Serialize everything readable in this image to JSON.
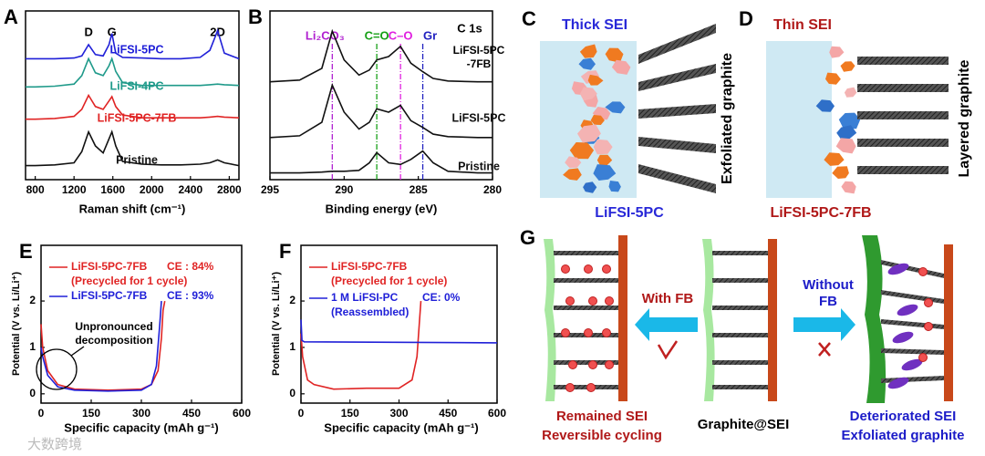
{
  "chart_data": [
    {
      "type": "line",
      "panel": "A",
      "xlabel": "Raman shift (cm⁻¹)",
      "x": [
        700,
        800,
        1000,
        1200,
        1280,
        1350,
        1420,
        1500,
        1560,
        1590,
        1630,
        1700,
        1900,
        2100,
        2300,
        2500,
        2600,
        2680,
        2750,
        2900
      ],
      "xlim": [
        700,
        2900
      ],
      "xticks": [
        800,
        1200,
        1600,
        2000,
        2400,
        2800
      ],
      "ylim": [
        0,
        12
      ],
      "grid": false,
      "peak_labels": [
        {
          "label": "D",
          "x": 1350
        },
        {
          "label": "G",
          "x": 1590
        },
        {
          "label": "2D",
          "x": 2680
        }
      ],
      "series": [
        {
          "name": "LiFSI-5PC",
          "color": "#2020d8",
          "values": [
            8.6,
            8.6,
            8.6,
            8.65,
            8.8,
            9.6,
            8.9,
            8.8,
            9.6,
            10.4,
            9.0,
            8.7,
            8.65,
            8.6,
            8.6,
            8.7,
            9.2,
            10.6,
            9.0,
            8.6
          ]
        },
        {
          "name": "LiFSI-4PC",
          "color": "#1f9a8a",
          "values": [
            6.6,
            6.6,
            6.65,
            6.8,
            7.4,
            8.6,
            7.6,
            7.4,
            8.1,
            8.6,
            7.7,
            6.9,
            6.7,
            6.7,
            6.7,
            6.7,
            6.75,
            6.8,
            6.75,
            6.7
          ]
        },
        {
          "name": "LiFSI-5PC-7FB",
          "color": "#e02424",
          "values": [
            4.3,
            4.3,
            4.35,
            4.5,
            5.0,
            6.0,
            5.2,
            5.0,
            5.6,
            5.9,
            5.2,
            4.6,
            4.4,
            4.4,
            4.4,
            4.4,
            4.45,
            4.5,
            4.45,
            4.4
          ]
        },
        {
          "name": "Pristine",
          "color": "#111111",
          "values": [
            1.0,
            1.0,
            1.05,
            1.2,
            2.0,
            3.4,
            2.4,
            1.9,
            2.9,
            3.4,
            2.4,
            1.3,
            1.1,
            1.05,
            1.05,
            1.1,
            1.2,
            1.4,
            1.2,
            1.0
          ]
        }
      ]
    },
    {
      "type": "line",
      "panel": "B",
      "title": "C 1s",
      "xlabel": "Binding energy (eV)",
      "x": [
        295,
        293,
        291.5,
        290.8,
        290,
        289,
        288.3,
        287.8,
        287,
        286.2,
        285.5,
        284.7,
        284,
        283,
        281,
        280
      ],
      "xlim": [
        295,
        280
      ],
      "xticks": [
        295,
        290,
        285,
        280
      ],
      "ylim": [
        0,
        10
      ],
      "grid": false,
      "peaks": [
        {
          "label": "Li₂CO₃",
          "x": 290.8,
          "color": "#b020d0"
        },
        {
          "label": "C=O",
          "x": 287.8,
          "color": "#18a018"
        },
        {
          "label": "C–O",
          "x": 286.2,
          "color": "#e020e0"
        },
        {
          "label": "Gr",
          "x": 284.7,
          "color": "#2020c0"
        }
      ],
      "series": [
        {
          "name": "LiFSI-5PC -7FB",
          "color": "#111111",
          "values": [
            5.8,
            5.9,
            6.6,
            8.8,
            7.1,
            6.2,
            6.5,
            7.1,
            7.3,
            7.9,
            6.9,
            6.4,
            6.0,
            5.85,
            5.8,
            5.8
          ]
        },
        {
          "name": "LiFSI-5PC",
          "color": "#111111",
          "values": [
            2.5,
            2.6,
            3.4,
            5.6,
            4.0,
            3.0,
            3.4,
            4.2,
            4.0,
            4.4,
            3.5,
            3.1,
            2.7,
            2.55,
            2.5,
            2.5
          ]
        },
        {
          "name": "Pristine",
          "color": "#111111",
          "values": [
            0.4,
            0.4,
            0.45,
            0.5,
            0.5,
            0.55,
            1.0,
            1.6,
            1.0,
            0.9,
            1.2,
            1.7,
            1.0,
            0.5,
            0.4,
            0.4
          ]
        }
      ]
    },
    {
      "type": "line",
      "panel": "E",
      "xlabel": "Specific capacity (mAh g⁻¹)",
      "ylabel": "Potential (V vs. Li/Li⁺)",
      "xlim": [
        0,
        600
      ],
      "xticks": [
        0,
        150,
        300,
        450,
        600
      ],
      "ylim": [
        -0.2,
        3.2
      ],
      "yticks": [
        0,
        1,
        2
      ],
      "grid": false,
      "annotation": "Unpronounced decomposition",
      "series": [
        {
          "name": "LiFSI-5PC-7FB",
          "color": "#e02424",
          "note": "CE : 84%",
          "sub": "(Precycled for 1 cycle)",
          "x": [
            0,
            5,
            20,
            50,
            100,
            200,
            300,
            330,
            350,
            360,
            365,
            370
          ],
          "values": [
            1.5,
            1.0,
            0.5,
            0.2,
            0.1,
            0.08,
            0.1,
            0.2,
            0.5,
            1.2,
            1.8,
            2.0
          ]
        },
        {
          "name": "LiFSI-5PC-7FB",
          "color": "#2020d8",
          "note": "CE : 93%",
          "x": [
            0,
            5,
            20,
            50,
            100,
            200,
            300,
            330,
            345,
            355,
            360
          ],
          "values": [
            1.0,
            0.8,
            0.4,
            0.15,
            0.08,
            0.06,
            0.08,
            0.2,
            0.6,
            1.5,
            2.0
          ]
        }
      ]
    },
    {
      "type": "line",
      "panel": "F",
      "xlabel": "Specific capacity (mAh g⁻¹)",
      "ylabel": "Potential (V vs. Li/Li⁺)",
      "xlim": [
        0,
        600
      ],
      "xticks": [
        0,
        150,
        300,
        450,
        600
      ],
      "ylim": [
        -0.2,
        3.2
      ],
      "yticks": [
        0,
        1,
        2
      ],
      "grid": false,
      "series": [
        {
          "name": "LiFSI-5PC-7FB",
          "color": "#e02424",
          "sub": "(Precycled for 1 cycle)",
          "x": [
            0,
            5,
            20,
            40,
            100,
            200,
            300,
            340,
            355,
            362,
            367
          ],
          "values": [
            1.3,
            0.8,
            0.3,
            0.2,
            0.1,
            0.12,
            0.12,
            0.3,
            0.8,
            1.5,
            2.0
          ]
        },
        {
          "name": "1 M LiFSI-PC",
          "color": "#2020d8",
          "note": "CE: 0%",
          "sub": "(Reassembled)",
          "x": [
            0,
            3,
            10,
            600
          ],
          "values": [
            1.6,
            1.15,
            1.12,
            1.1
          ]
        }
      ]
    }
  ],
  "diagrams": {
    "C": {
      "panel": "C",
      "title": "Thick SEI",
      "side": "Exfoliated graphite",
      "caption": "LiFSI-5PC"
    },
    "D": {
      "panel": "D",
      "title": "Thin SEI",
      "side": "Layered graphite",
      "caption": "LiFSI-5PC-7FB"
    },
    "G": {
      "panel": "G",
      "left_arrow": "With FB",
      "right_arrow": "Without FB",
      "left_caption": [
        "Remained SEI",
        "Reversible cycling"
      ],
      "center_caption": "Graphite@SEI",
      "right_caption": [
        "Deteriorated SEI",
        "Exfoliated graphite"
      ]
    }
  },
  "watermark": "大数跨境"
}
